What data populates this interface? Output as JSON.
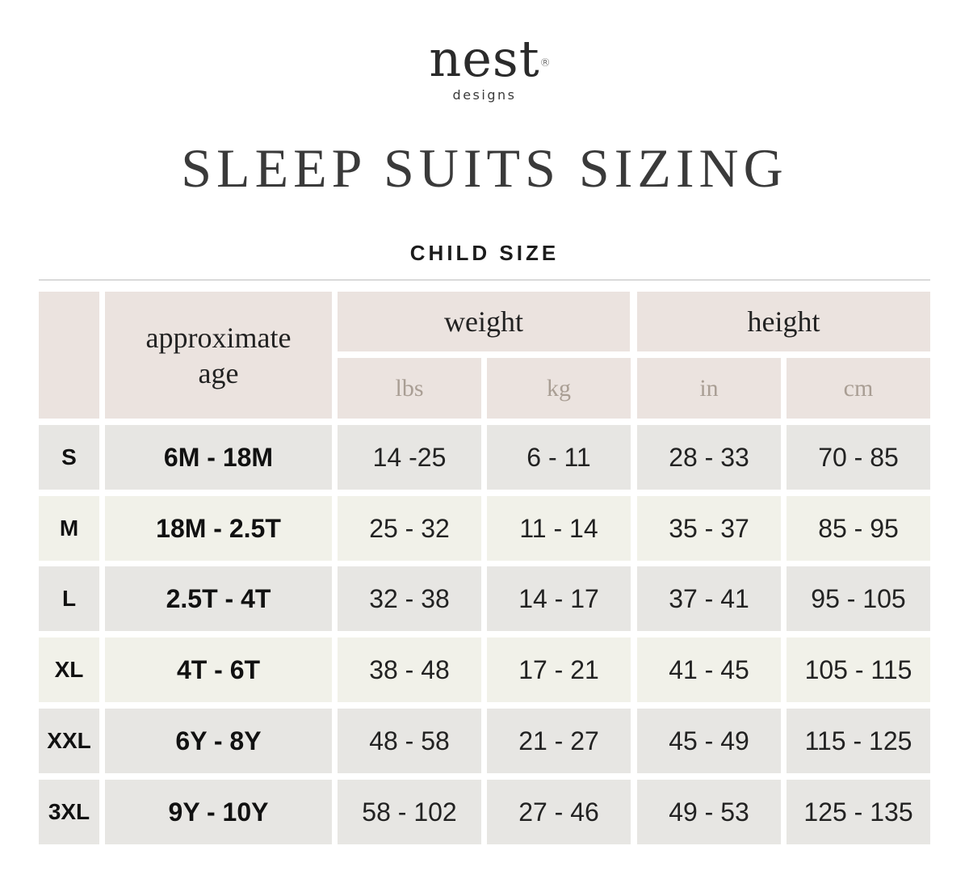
{
  "brand": {
    "name": "nest",
    "registered": "®",
    "sub": "designs"
  },
  "title": "SLEEP SUITS SIZING",
  "subtitle": "CHILD SIZE",
  "headers": {
    "age": "approximate age",
    "weight": "weight",
    "height": "height",
    "units": [
      "lbs",
      "kg",
      "in",
      "cm"
    ]
  },
  "rows": [
    {
      "size": "S",
      "age": "6M - 18M",
      "lbs": "14 -25",
      "kg": "6 - 11",
      "in": "28 - 33",
      "cm": "70 - 85"
    },
    {
      "size": "M",
      "age": "18M - 2.5T",
      "lbs": "25 - 32",
      "kg": "11 - 14",
      "in": "35 - 37",
      "cm": "85 - 95"
    },
    {
      "size": "L",
      "age": "2.5T - 4T",
      "lbs": "32 - 38",
      "kg": "14 - 17",
      "in": "37 - 41",
      "cm": "95 - 105"
    },
    {
      "size": "XL",
      "age": "4T - 6T",
      "lbs": "38 - 48",
      "kg": "17 - 21",
      "in": "41 - 45",
      "cm": "105 - 115"
    },
    {
      "size": "XXL",
      "age": "6Y - 8Y",
      "lbs": "48 - 58",
      "kg": "21 - 27",
      "in": "45 - 49",
      "cm": "115 - 125"
    },
    {
      "size": "3XL",
      "age": "9Y - 10Y",
      "lbs": "58 - 102",
      "kg": "27 - 46",
      "in": "49 - 53",
      "cm": "125 - 135"
    }
  ],
  "colors": {
    "header_bg": "#ebe3df",
    "row_odd": "#e7e6e3",
    "row_even": "#f1f1e9",
    "unit_text": "#a99e94"
  }
}
